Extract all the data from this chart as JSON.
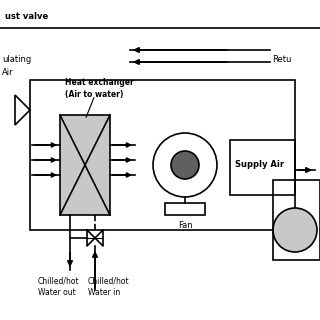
{
  "title": "",
  "bg_color": "#ffffff",
  "line_color": "#000000",
  "gray_color": "#c8c8c8",
  "dark_gray": "#606060",
  "labels": {
    "exhaust_valve": "ust valve",
    "recirculating": "ulating",
    "air": "Air",
    "return": "Retu",
    "heat_exchanger": "Heat exchanger\n(Air to water)",
    "supply_air": "Supply Air",
    "fan": "Fan",
    "chilled_out": "Chilled/hot\nWater out",
    "chilled_in": "Chilled/hot\nWater in"
  }
}
